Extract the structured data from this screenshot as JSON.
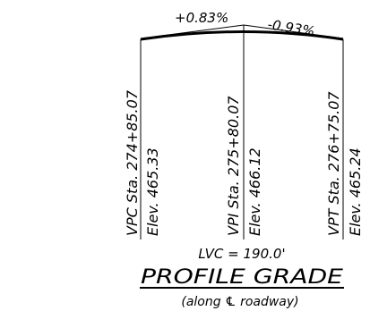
{
  "diagram": {
    "grade_in": "+0.83%",
    "grade_out": "-0.93%",
    "vpc": {
      "station": "VPC Sta. 274+85.07",
      "elevation": "Elev. 465.33"
    },
    "vpi": {
      "station": "VPI Sta. 275+80.07",
      "elevation": "Elev. 466.12"
    },
    "vpt": {
      "station": "VPT Sta. 276+75.07",
      "elevation": "Elev. 465.24"
    },
    "curve_length": "LVC = 190.0'",
    "title": "PROFILE GRADE",
    "subtitle": "(along ℄ roadway)"
  },
  "colors": {
    "line": "#000000",
    "background": "#ffffff"
  }
}
